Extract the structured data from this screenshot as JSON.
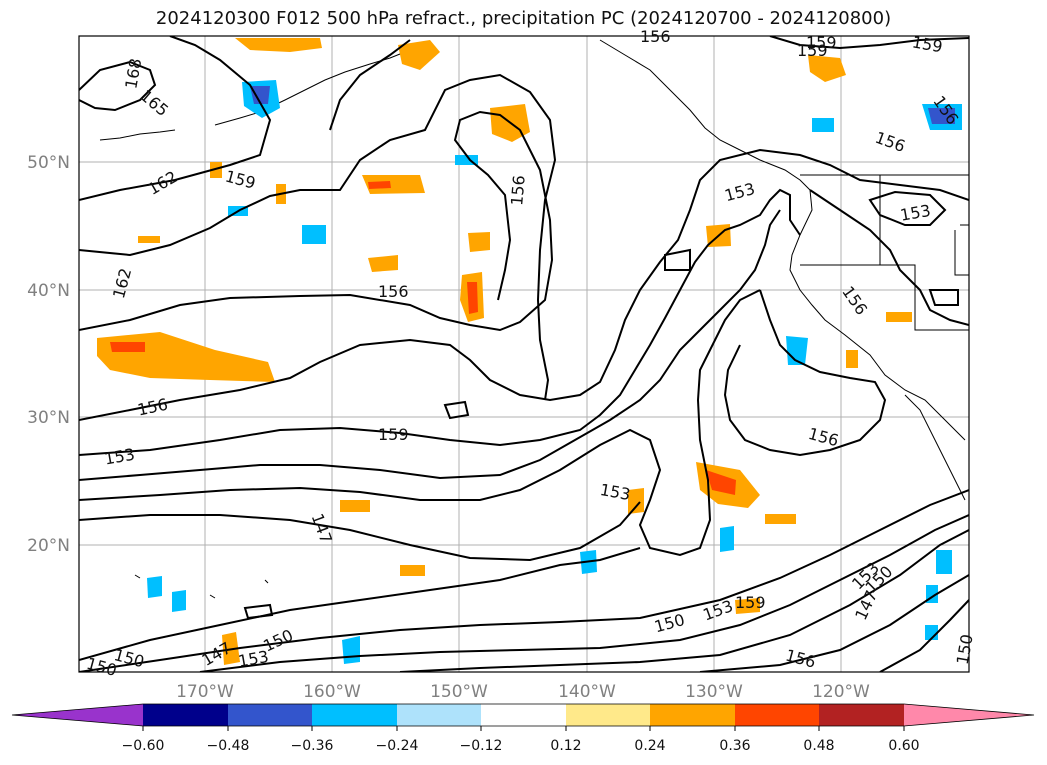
{
  "title": "2024120300 F012 500 hPa refract., precipitation PC (2024120700 - 2024120800)",
  "lat_labels": [
    "50°N",
    "40°N",
    "30°N",
    "20°N"
  ],
  "lon_labels": [
    "170°W",
    "160°W",
    "150°W",
    "140°W",
    "130°W",
    "120°W"
  ],
  "contour_labels": [
    "168",
    "165",
    "162",
    "159",
    "156",
    "162",
    "156",
    "156",
    "153",
    "159",
    "153",
    "147",
    "147",
    "150",
    "153",
    "150",
    "150",
    "153",
    "159",
    "156",
    "153",
    "150",
    "147",
    "150",
    "156",
    "153",
    "156",
    "159",
    "159",
    "156",
    "153",
    "156",
    "156",
    "159",
    "150"
  ],
  "colorbar": {
    "ticks": [
      "−0.60",
      "−0.48",
      "−0.36",
      "−0.24",
      "−0.12",
      "0.12",
      "0.24",
      "0.36",
      "0.48",
      "0.60"
    ],
    "colors": [
      "#9933cc",
      "#00008b",
      "#3355cc",
      "#00bfff",
      "#aee2fb",
      "#ffffff",
      "#ffe98a",
      "#ffa500",
      "#ff4500",
      "#b22222",
      "#ff88aa"
    ]
  }
}
